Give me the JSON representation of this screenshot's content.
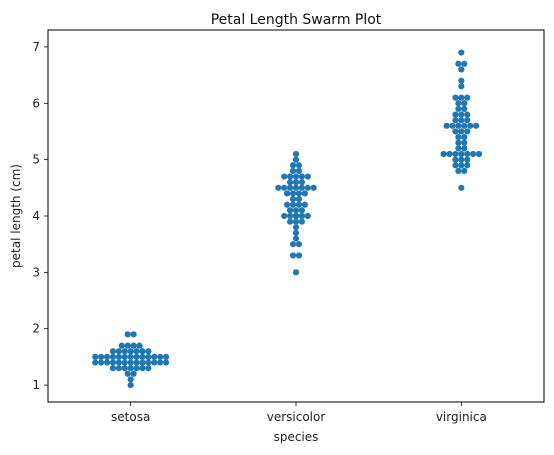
{
  "chart_data": {
    "type": "scatter",
    "subtype": "swarm",
    "title": "Petal Length Swarm Plot",
    "xlabel": "species",
    "ylabel": "petal length (cm)",
    "categories": [
      "setosa",
      "versicolor",
      "virginica"
    ],
    "ylim": [
      0.7,
      7.3
    ],
    "yticks": [
      1,
      2,
      3,
      4,
      5,
      6,
      7
    ],
    "grid": false,
    "legend": "none",
    "color": "#1f77b4",
    "series": [
      {
        "category": "setosa",
        "values": [
          1.4,
          1.4,
          1.3,
          1.5,
          1.4,
          1.7,
          1.4,
          1.5,
          1.4,
          1.5,
          1.5,
          1.6,
          1.4,
          1.1,
          1.2,
          1.5,
          1.3,
          1.4,
          1.7,
          1.5,
          1.7,
          1.5,
          1.0,
          1.7,
          1.9,
          1.6,
          1.6,
          1.5,
          1.4,
          1.6,
          1.6,
          1.5,
          1.5,
          1.4,
          1.5,
          1.2,
          1.3,
          1.4,
          1.3,
          1.5,
          1.3,
          1.3,
          1.3,
          1.6,
          1.9,
          1.4,
          1.6,
          1.4,
          1.5,
          1.4
        ]
      },
      {
        "category": "versicolor",
        "values": [
          4.7,
          4.5,
          4.9,
          4.0,
          4.6,
          4.5,
          4.7,
          3.3,
          4.6,
          3.9,
          3.5,
          4.2,
          4.0,
          4.7,
          3.6,
          4.4,
          4.5,
          4.1,
          4.5,
          3.9,
          4.8,
          4.0,
          4.9,
          4.7,
          4.3,
          4.4,
          4.8,
          5.0,
          4.5,
          3.5,
          3.8,
          3.7,
          3.9,
          5.1,
          4.5,
          4.5,
          4.7,
          4.4,
          4.1,
          4.0,
          4.4,
          4.6,
          4.0,
          3.3,
          4.2,
          4.2,
          4.2,
          4.3,
          3.0,
          4.1
        ]
      },
      {
        "category": "virginica",
        "values": [
          6.0,
          5.1,
          5.9,
          5.6,
          5.8,
          6.6,
          4.5,
          6.3,
          5.8,
          6.1,
          5.1,
          5.3,
          5.5,
          5.0,
          5.1,
          5.3,
          5.5,
          6.7,
          6.9,
          5.0,
          5.7,
          4.9,
          6.7,
          4.9,
          5.7,
          6.0,
          4.8,
          4.9,
          5.6,
          5.8,
          6.1,
          6.4,
          5.6,
          5.1,
          5.6,
          6.1,
          5.6,
          5.5,
          4.8,
          5.4,
          5.6,
          5.1,
          5.1,
          5.9,
          5.7,
          5.2,
          5.0,
          5.2,
          5.4,
          5.1
        ]
      }
    ]
  }
}
